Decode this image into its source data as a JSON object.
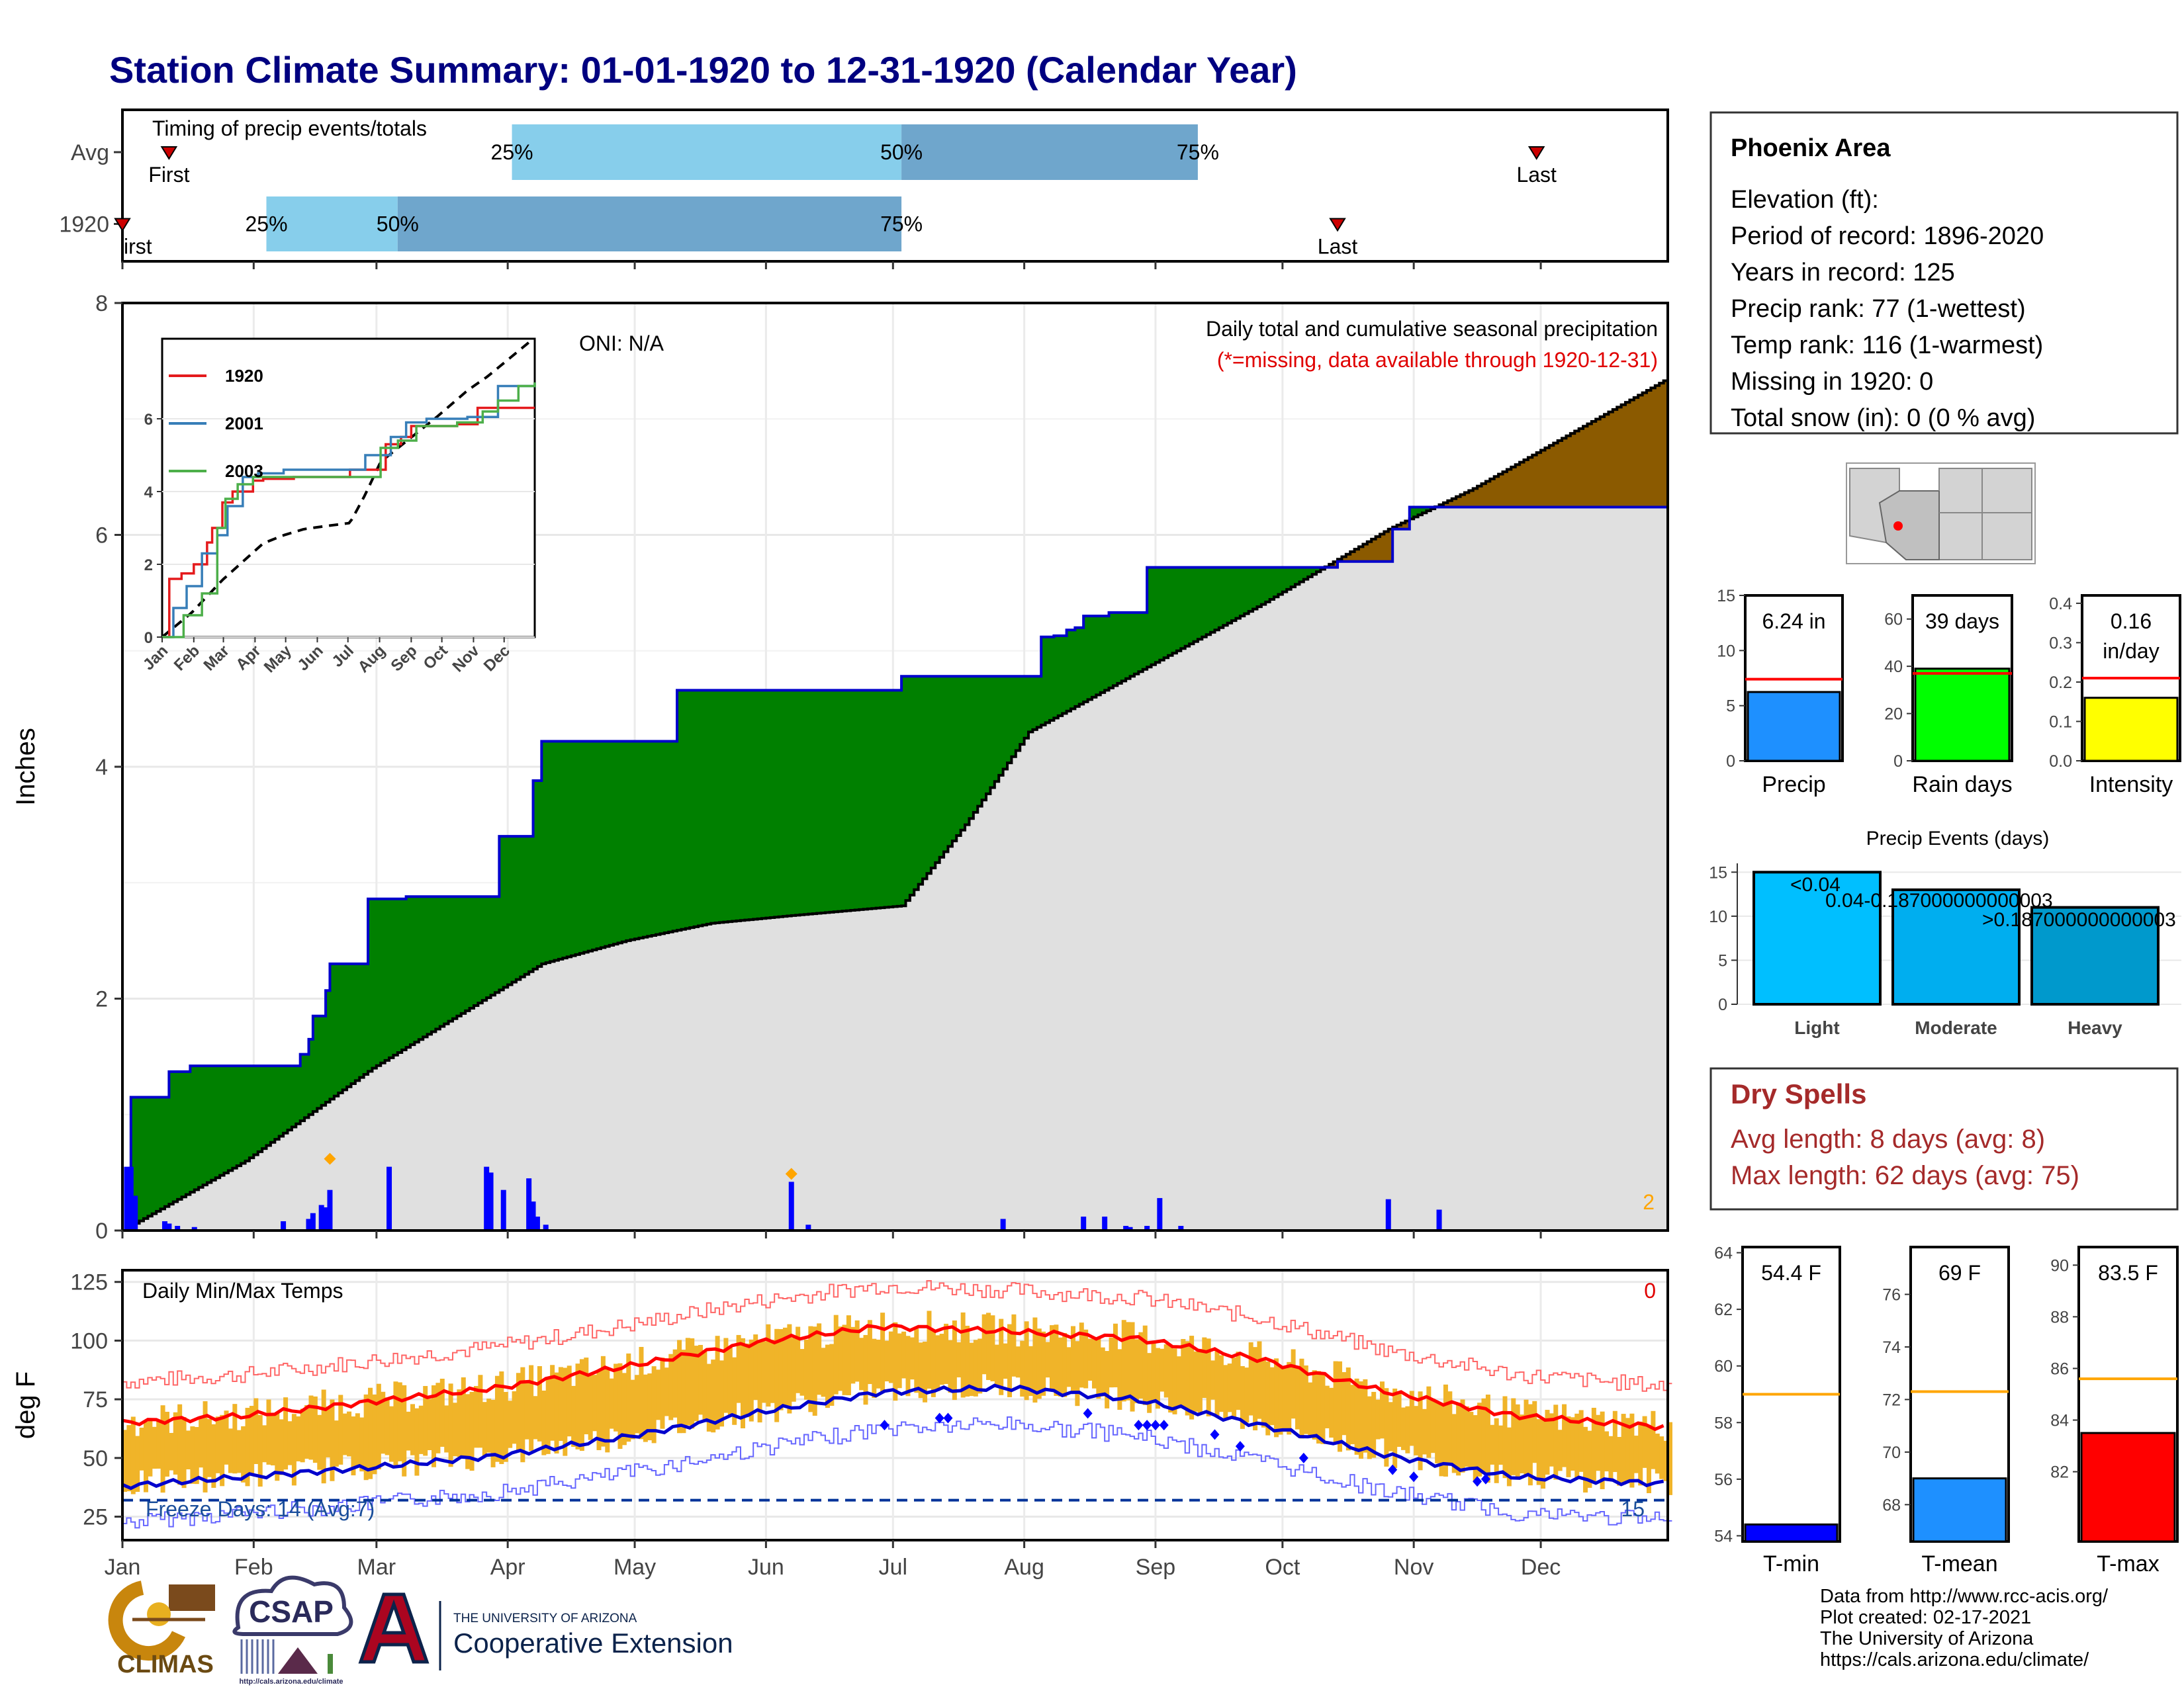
{
  "title": "Station Climate Summary: 01-01-1920 to 12-31-1920 (Calendar Year)",
  "colors": {
    "title": "#000080",
    "bar_light": "#87CEEB",
    "bar_dark": "#6FA6CC",
    "surplus_green": "#008000",
    "deficit_brown": "#8B5A00",
    "normal_gray": "#E0E0E0",
    "precip_line": "#0000CC",
    "tmax": "#FF0000",
    "tmin": "#0000CC",
    "temp_range": "#F0B429",
    "dry_spells": "#A52A2A"
  },
  "timing": {
    "heading": "Timing of precip events/totals",
    "rows": [
      {
        "label": "Avg",
        "first_doy": 12,
        "q25_doy": 93,
        "q50_doy": 185,
        "q75_doy": 255,
        "last_doy": 335
      },
      {
        "label": "1920",
        "first_doy": 1,
        "q25_doy": 35,
        "q50_doy": 66,
        "q75_doy": 185,
        "last_doy": 288
      }
    ],
    "first_label": "First",
    "first_label_clipped": "irst",
    "last_label": "Last",
    "q_labels": [
      "25%",
      "50%",
      "75%"
    ]
  },
  "precip_panel": {
    "title": "Daily total and cumulative seasonal precipitation",
    "subtitle": "(*=missing, data available through 1920-12-31)",
    "oni": "ONI: N/A",
    "ylabel": "Inches",
    "corner_count": "2",
    "yticks": [
      "0",
      "2",
      "4",
      "6",
      "8"
    ]
  },
  "temp_panel": {
    "title": "Daily Min/Max Temps",
    "ylabel": "deg F",
    "yticks": [
      "25",
      "50",
      "75",
      "100",
      "125"
    ],
    "freeze_label": "Freeze Days: 14 (Avg:7)",
    "right_top": "0",
    "right_bottom": "15"
  },
  "months": [
    "Jan",
    "Feb",
    "Mar",
    "Apr",
    "May",
    "Jun",
    "Jul",
    "Aug",
    "Sep",
    "Oct",
    "Nov",
    "Dec"
  ],
  "inset": {
    "months": [
      "Jan",
      "Feb",
      "Mar",
      "Apr",
      "May",
      "Jun",
      "Jul",
      "Aug",
      "Sep",
      "Oct",
      "Nov",
      "Dec"
    ],
    "yticks": [
      "0",
      "2",
      "4",
      "6"
    ],
    "legend": [
      {
        "name": "1920",
        "color": "#E41A1C"
      },
      {
        "name": "2001",
        "color": "#377EB8"
      },
      {
        "name": "2003",
        "color": "#4DAF4A"
      }
    ]
  },
  "info": {
    "name": "Phoenix Area",
    "lines": [
      "Elevation (ft):",
      "Period of record: 1896-2020",
      "Years in record: 125",
      "Precip rank: 77 (1-wettest)",
      "Temp rank: 116 (1-warmest)",
      "Missing in 1920: 0",
      "Total snow (in): 0 (0 % avg)"
    ]
  },
  "mini_precip": [
    {
      "label": "Precip",
      "value_text": "6.24 in",
      "value": 6.24,
      "avg": 7.4,
      "max": 15,
      "ticks": [
        "0",
        "5",
        "10",
        "15"
      ],
      "color": "#1E90FF"
    },
    {
      "label": "Rain days",
      "value_text": "39 days",
      "value": 39,
      "avg": 37,
      "max": 70,
      "ticks": [
        "0",
        "20",
        "40",
        "60"
      ],
      "color": "#00FF00"
    },
    {
      "label": "Intensity",
      "value_text": "0.16",
      "value_text2": "in/day",
      "value": 0.16,
      "avg": 0.21,
      "max": 0.42,
      "ticks": [
        "0.0",
        "0.1",
        "0.2",
        "0.3",
        "0.4"
      ],
      "color": "#FFFF00"
    }
  ],
  "events": {
    "title": "Precip Events (days)",
    "bars": [
      {
        "label": "Light",
        "value": 15,
        "annot": "<0.04",
        "color": "#00BFFF"
      },
      {
        "label": "Moderate",
        "value": 13,
        "annot": "0.04-0.187000000000003",
        "color": "#00AEEF"
      },
      {
        "label": "Heavy",
        "value": 11,
        "annot": ">0.187000000000003",
        "color": "#0099CC"
      }
    ],
    "ticks": [
      "0",
      "5",
      "10",
      "15"
    ]
  },
  "dry_spells": {
    "title": "Dry Spells",
    "avg_length": "Avg length: 8 days (avg: 8)",
    "max_length": "Max length: 62 days (avg: 75)"
  },
  "mini_temp": [
    {
      "label": "T-min",
      "value_text": "54.4 F",
      "value": 54.4,
      "avg": 59.0,
      "min": 53.8,
      "max": 64.2,
      "ticks": [
        "54",
        "56",
        "58",
        "60",
        "62",
        "64"
      ],
      "color": "#0000FF"
    },
    {
      "label": "T-mean",
      "value_text": "69 F",
      "value": 69.0,
      "avg": 72.3,
      "min": 66.6,
      "max": 77.8,
      "ticks": [
        "68",
        "70",
        "72",
        "74",
        "76"
      ],
      "color": "#1E90FF"
    },
    {
      "label": "T-max",
      "value_text": "83.5 F",
      "value": 83.5,
      "avg": 85.6,
      "min": 79.3,
      "max": 90.7,
      "ticks": [
        "82",
        "84",
        "86",
        "88",
        "90"
      ],
      "color": "#FF0000"
    }
  ],
  "footer": {
    "lines": [
      "Data from http://www.rcc-acis.org/",
      "Plot created: 02-17-2021",
      "The University of Arizona",
      "https://cals.arizona.edu/climate/"
    ]
  },
  "logos": {
    "climas": "CLIMAS",
    "csap": "CSAP",
    "csap_url": "http://cals.arizona.edu/climate",
    "ua_small": "THE UNIVERSITY OF ARIZONA",
    "ua_big": "Cooperative Extension"
  },
  "chart_data": {
    "type": "area",
    "title": "Daily total and cumulative seasonal precipitation",
    "ylabel": "Inches",
    "ylim": [
      0,
      8
    ],
    "x_units": "day of year",
    "cumulative_observed": {
      "name": "1920",
      "x": [
        1,
        3,
        12,
        17,
        43,
        45,
        46,
        49,
        50,
        59,
        68,
        90,
        98,
        100,
        132,
        185,
        218,
        221,
        224,
        226,
        228,
        234,
        243,
        288,
        301,
        305,
        366
      ],
      "y": [
        0,
        1.15,
        1.37,
        1.42,
        1.52,
        1.65,
        1.85,
        2.07,
        2.3,
        2.86,
        2.88,
        3.4,
        3.88,
        4.22,
        4.66,
        4.78,
        5.12,
        5.13,
        5.18,
        5.2,
        5.3,
        5.33,
        5.72,
        5.77,
        6.05,
        6.24,
        6.24
      ]
    },
    "cumulative_normal": {
      "x": [
        1,
        30,
        60,
        100,
        120,
        140,
        160,
        185,
        200,
        215,
        240,
        270,
        300,
        320,
        366
      ],
      "y": [
        0,
        0.6,
        1.4,
        2.3,
        2.5,
        2.65,
        2.72,
        2.8,
        3.5,
        4.3,
        4.8,
        5.4,
        6.05,
        6.4,
        7.35
      ]
    },
    "daily_precip": {
      "x": [
        2,
        3,
        4,
        11,
        12,
        14,
        18,
        39,
        45,
        46,
        48,
        49,
        50,
        64,
        87,
        88,
        91,
        97,
        98,
        99,
        101,
        159,
        163,
        209,
        228,
        233,
        238,
        239,
        243,
        246,
        251,
        300,
        312
      ],
      "y": [
        0.55,
        0.55,
        0.3,
        0.08,
        0.06,
        0.04,
        0.03,
        0.08,
        0.1,
        0.15,
        0.22,
        0.2,
        0.35,
        0.55,
        0.55,
        0.5,
        0.35,
        0.45,
        0.25,
        0.12,
        0.05,
        0.42,
        0.05,
        0.1,
        0.12,
        0.12,
        0.04,
        0.03,
        0.04,
        0.28,
        0.04,
        0.27,
        0.18
      ]
    },
    "temperature": {
      "title": "Daily Min/Max Temps",
      "ylabel": "deg F",
      "ylim": [
        15,
        130
      ],
      "avg_tmax_x": [
        1,
        30,
        60,
        90,
        120,
        150,
        180,
        210,
        240,
        270,
        300,
        330,
        366
      ],
      "avg_tmax_y": [
        65,
        68,
        74,
        80,
        89,
        99,
        106,
        104,
        101,
        92,
        78,
        68,
        63
      ],
      "avg_tmin_x": [
        1,
        30,
        60,
        90,
        120,
        150,
        180,
        210,
        240,
        270,
        300,
        330,
        366
      ],
      "avg_tmin_y": [
        38,
        42,
        46,
        51,
        59,
        69,
        78,
        80,
        75,
        64,
        51,
        42,
        39
      ],
      "freeze_line": 32
    }
  }
}
